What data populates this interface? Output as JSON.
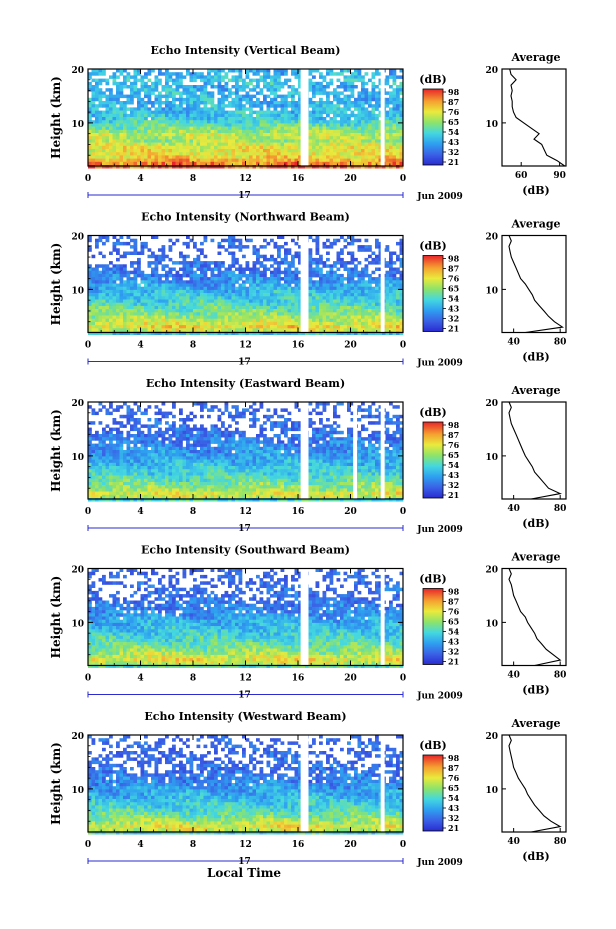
{
  "figure": {
    "xlabel": "Local Time",
    "date_label": "Jun 2009",
    "day_label": "17",
    "colorbar_unit": "(dB)",
    "avg_xlabel": "(dB)",
    "avg_title": "Average",
    "ylabel": "Height (km)"
  },
  "chart_data": [
    {
      "type": "heatmap",
      "title": "Echo Intensity (Vertical Beam)",
      "xlabel": "Local Time",
      "ylabel": "Height (km)",
      "x_ticks": [
        "0",
        "4",
        "8",
        "12",
        "16",
        "20",
        "0"
      ],
      "y_ticks": [
        "10",
        "20"
      ],
      "xlim": [
        0,
        24
      ],
      "ylim": [
        2,
        20
      ],
      "colorbar": {
        "label": "(dB)",
        "ticks": [
          "98",
          "87",
          "76",
          "65",
          "54",
          "43",
          "32",
          "21"
        ]
      },
      "data_gaps_hours": [
        [
          16.2,
          16.8
        ],
        [
          22.3,
          22.6
        ]
      ],
      "average_profile": {
        "title": "Average",
        "xlabel": "(dB)",
        "x_ticks": [
          "60",
          "90"
        ],
        "xlim": [
          45,
          95
        ],
        "height_km": [
          2,
          3,
          4,
          5,
          6,
          7,
          8,
          9,
          10,
          11,
          12,
          13,
          14,
          15,
          16,
          17,
          18,
          19,
          20
        ],
        "values_db": [
          94,
          88,
          80,
          78,
          76,
          70,
          74,
          68,
          62,
          56,
          54,
          53,
          53,
          52,
          53,
          52,
          56,
          52,
          51
        ]
      }
    },
    {
      "type": "heatmap",
      "title": "Echo Intensity (Northward Beam)",
      "xlabel": "Local Time",
      "ylabel": "Height (km)",
      "x_ticks": [
        "0",
        "4",
        "8",
        "12",
        "16",
        "20",
        "0"
      ],
      "y_ticks": [
        "10",
        "20"
      ],
      "xlim": [
        0,
        24
      ],
      "ylim": [
        2,
        20
      ],
      "colorbar": {
        "label": "(dB)",
        "ticks": [
          "98",
          "87",
          "76",
          "65",
          "54",
          "43",
          "32",
          "21"
        ]
      },
      "data_gaps_hours": [
        [
          16.2,
          16.8
        ],
        [
          22.3,
          22.6
        ]
      ],
      "average_profile": {
        "title": "Average",
        "xlabel": "(dB)",
        "x_ticks": [
          "40",
          "80"
        ],
        "xlim": [
          30,
          85
        ],
        "height_km": [
          2,
          3,
          4,
          5,
          6,
          7,
          8,
          9,
          10,
          11,
          12,
          13,
          14,
          15,
          16,
          17,
          18,
          19,
          20
        ],
        "values_db": [
          50,
          82,
          75,
          70,
          66,
          62,
          58,
          56,
          53,
          50,
          46,
          44,
          42,
          40,
          38,
          37,
          36,
          38,
          36
        ]
      }
    },
    {
      "type": "heatmap",
      "title": "Echo Intensity (Eastward Beam)",
      "xlabel": "Local Time",
      "ylabel": "Height (km)",
      "x_ticks": [
        "0",
        "4",
        "8",
        "12",
        "16",
        "20",
        "0"
      ],
      "y_ticks": [
        "10",
        "20"
      ],
      "xlim": [
        0,
        24
      ],
      "ylim": [
        2,
        20
      ],
      "colorbar": {
        "label": "(dB)",
        "ticks": [
          "98",
          "87",
          "76",
          "65",
          "54",
          "43",
          "32",
          "21"
        ]
      },
      "data_gaps_hours": [
        [
          16.2,
          16.8
        ],
        [
          20.2,
          20.5
        ],
        [
          22.3,
          22.6
        ]
      ],
      "average_profile": {
        "title": "Average",
        "xlabel": "(dB)",
        "x_ticks": [
          "40",
          "80"
        ],
        "xlim": [
          30,
          85
        ],
        "height_km": [
          2,
          3,
          4,
          5,
          6,
          7,
          8,
          9,
          10,
          11,
          12,
          13,
          14,
          15,
          16,
          17,
          18,
          19,
          20
        ],
        "values_db": [
          55,
          80,
          70,
          66,
          62,
          58,
          56,
          53,
          50,
          48,
          46,
          44,
          42,
          40,
          38,
          37,
          36,
          38,
          36
        ]
      }
    },
    {
      "type": "heatmap",
      "title": "Echo Intensity (Southward Beam)",
      "xlabel": "Local Time",
      "ylabel": "Height (km)",
      "x_ticks": [
        "0",
        "4",
        "8",
        "12",
        "16",
        "20",
        "0"
      ],
      "y_ticks": [
        "10",
        "20"
      ],
      "xlim": [
        0,
        24
      ],
      "ylim": [
        2,
        20
      ],
      "colorbar": {
        "label": "(dB)",
        "ticks": [
          "98",
          "87",
          "76",
          "65",
          "54",
          "43",
          "32",
          "21"
        ]
      },
      "data_gaps_hours": [
        [
          16.2,
          16.8
        ],
        [
          22.3,
          22.6
        ]
      ],
      "average_profile": {
        "title": "Average",
        "xlabel": "(dB)",
        "x_ticks": [
          "40",
          "80"
        ],
        "xlim": [
          30,
          85
        ],
        "height_km": [
          2,
          3,
          4,
          5,
          6,
          7,
          8,
          9,
          10,
          11,
          12,
          13,
          14,
          15,
          16,
          17,
          18,
          19,
          20
        ],
        "values_db": [
          58,
          80,
          74,
          68,
          64,
          60,
          58,
          55,
          52,
          50,
          46,
          44,
          42,
          40,
          39,
          38,
          36,
          38,
          36
        ]
      }
    },
    {
      "type": "heatmap",
      "title": "Echo Intensity (Westward Beam)",
      "xlabel": "Local Time",
      "ylabel": "Height (km)",
      "x_ticks": [
        "0",
        "4",
        "8",
        "12",
        "16",
        "20",
        "0"
      ],
      "y_ticks": [
        "10",
        "20"
      ],
      "xlim": [
        0,
        24
      ],
      "ylim": [
        2,
        20
      ],
      "colorbar": {
        "label": "(dB)",
        "ticks": [
          "98",
          "87",
          "76",
          "65",
          "54",
          "43",
          "32",
          "21"
        ]
      },
      "data_gaps_hours": [
        [
          16.2,
          16.8
        ],
        [
          22.3,
          22.6
        ]
      ],
      "average_profile": {
        "title": "Average",
        "xlabel": "(dB)",
        "x_ticks": [
          "40",
          "80"
        ],
        "xlim": [
          30,
          85
        ],
        "height_km": [
          2,
          3,
          4,
          5,
          6,
          7,
          8,
          9,
          10,
          11,
          12,
          13,
          14,
          15,
          16,
          17,
          18,
          19,
          20
        ],
        "values_db": [
          55,
          80,
          72,
          66,
          62,
          58,
          55,
          52,
          50,
          47,
          44,
          42,
          40,
          39,
          38,
          37,
          36,
          38,
          36
        ]
      }
    }
  ]
}
